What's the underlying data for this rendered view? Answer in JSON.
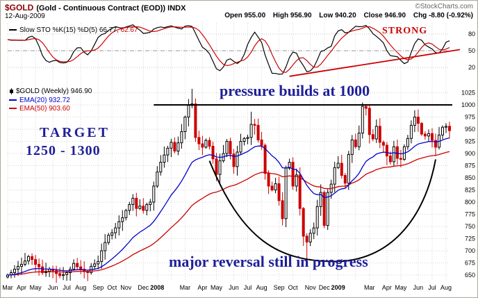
{
  "header": {
    "symbol": "$GOLD",
    "description": "(Gold - Continuous Contract (EOD)) INDX",
    "copyright": "©StockCharts.com",
    "date": "12-Aug-2009",
    "quote": [
      {
        "label": "Open",
        "value": "955.00"
      },
      {
        "label": "High",
        "value": "956.90"
      },
      {
        "label": "Low",
        "value": "940.20"
      },
      {
        "label": "Close",
        "value": "946.90"
      },
      {
        "label": "Chg",
        "value": "-8.80 (-0.92%)"
      }
    ]
  },
  "legend": {
    "sto_name": "Slow STO %K(15) %D(5)",
    "sto_k": "66.77,",
    "sto_d": "62.67",
    "symbol": "$GOLD (Weekly)",
    "last": "946.90",
    "ema20": "EMA(20) 932.72",
    "ema50": "EMA(50) 903.60"
  },
  "annotations": {
    "strong": "STRONG",
    "pressure": "pressure builds at 1000",
    "target_line1": "TARGET",
    "target_line2": "1250 - 1300",
    "reversal": "major reversal still in progress"
  },
  "colors": {
    "up": "#000000",
    "down": "#cc0000",
    "red": "#cc0000",
    "k_line": "#000000",
    "d_line": "#cc0000",
    "ema20": "#0000cc",
    "ema50": "#cc0000",
    "annotation_blue": "#1f1f99",
    "symbol_maroon": "#8b0000",
    "grid": "#d6d6d6"
  },
  "chart_data": [
    {
      "panel": "stochastic",
      "type": "line",
      "indicator": "Slow STO %K(15) %D(5)",
      "k_value": 66.77,
      "d_value": 62.67,
      "ylim": [
        0,
        100
      ],
      "yticks": [
        20,
        50,
        80
      ],
      "series_note": "%K (black) and %D (red) are computed in-page from the weekly OHLC series of the price panel",
      "trendline": {
        "x1_week": 81,
        "v1": 4,
        "x2_week": 130,
        "v2": 52
      },
      "annotation": "STRONG"
    },
    {
      "panel": "price",
      "type": "candlestick",
      "symbol": "$GOLD (Weekly)",
      "last_close": 946.9,
      "overlays": [
        {
          "name": "EMA(20)",
          "value": 932.72
        },
        {
          "name": "EMA(50)",
          "value": 903.6
        }
      ],
      "ylim": [
        640,
        1040
      ],
      "yticks": [
        650,
        675,
        700,
        725,
        750,
        775,
        800,
        825,
        850,
        875,
        900,
        925,
        950,
        975,
        1000,
        1025
      ],
      "weekly_closes": [
        650,
        655,
        662,
        668,
        672,
        679,
        688,
        682,
        672,
        667,
        655,
        658,
        662,
        659,
        653,
        649,
        651,
        655,
        662,
        674,
        667,
        662,
        657,
        655,
        668,
        673,
        678,
        700,
        717,
        732,
        737,
        747,
        760,
        768,
        783,
        795,
        808,
        787,
        792,
        783,
        795,
        800,
        833,
        862,
        882,
        897,
        911,
        923,
        905,
        922,
        945,
        975,
        999,
        1002,
        933,
        920,
        913,
        927,
        915,
        889,
        857,
        885,
        900,
        925,
        899,
        873,
        903,
        925,
        931,
        933,
        960,
        958,
        928,
        917,
        859,
        833,
        825,
        838,
        803,
        766,
        870,
        882,
        833,
        856,
        787,
        730,
        718,
        736,
        747,
        791,
        820,
        752,
        820,
        837,
        871,
        880,
        855,
        839,
        898,
        928,
        914,
        942,
        997,
        993,
        939,
        930,
        956,
        923,
        917,
        895,
        883,
        914,
        890,
        888,
        914,
        931,
        958,
        975,
        962,
        940,
        936,
        941,
        927,
        913,
        938,
        954,
        956,
        947
      ],
      "wick_high_overrides": {
        "52": 1012,
        "53": 1033,
        "70": 986,
        "102": 1005,
        "103": 1002,
        "117": 989
      },
      "wick_low_overrides": {
        "85": 710,
        "86": 681
      },
      "x_labels": [
        [
          "Mar",
          0,
          0
        ],
        [
          "Apr",
          4,
          0
        ],
        [
          "May",
          8,
          0
        ],
        [
          "Jun",
          13,
          0
        ],
        [
          "Jul",
          17,
          0
        ],
        [
          "Aug",
          21,
          0
        ],
        [
          "Sep",
          26,
          0
        ],
        [
          "Oct",
          30,
          0
        ],
        [
          "Nov",
          34,
          0
        ],
        [
          "Dec",
          39,
          0
        ],
        [
          "2008",
          43,
          1
        ],
        [
          "Mar",
          51,
          0
        ],
        [
          "Apr",
          56,
          0
        ],
        [
          "May",
          60,
          0
        ],
        [
          "Jun",
          65,
          0
        ],
        [
          "Jul",
          69,
          0
        ],
        [
          "Aug",
          73,
          0
        ],
        [
          "Sep",
          78,
          0
        ],
        [
          "Oct",
          82,
          0
        ],
        [
          "Nov",
          87,
          0
        ],
        [
          "Dec",
          91,
          0
        ],
        [
          "2009",
          95,
          1
        ],
        [
          "Mar",
          104,
          0
        ],
        [
          "Apr",
          109,
          0
        ],
        [
          "May",
          113,
          0
        ],
        [
          "Jun",
          118,
          0
        ],
        [
          "Jul",
          122,
          0
        ],
        [
          "Aug",
          126,
          0
        ]
      ],
      "month_grid_weeks": [
        0,
        4,
        8,
        13,
        17,
        21,
        26,
        30,
        34,
        39,
        43,
        47,
        51,
        56,
        60,
        65,
        69,
        73,
        78,
        82,
        87,
        91,
        95,
        100,
        104,
        109,
        113,
        118,
        122,
        126
      ],
      "resistance_line": {
        "price": 1000,
        "x1_week": 42,
        "x2_week": 128
      },
      "saucer": {
        "start": [
          58,
          885
        ],
        "bottom": [
          94,
          678
        ],
        "end": [
          123,
          888
        ]
      }
    }
  ]
}
